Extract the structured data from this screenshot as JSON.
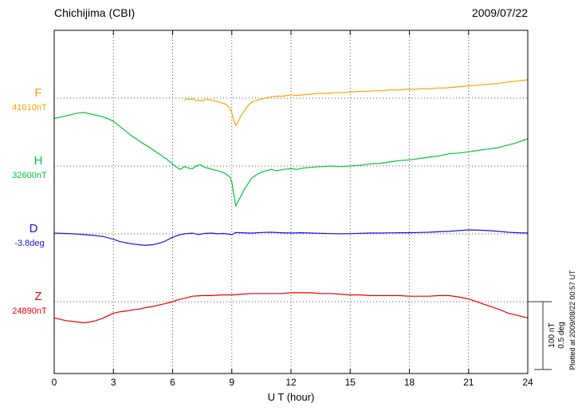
{
  "header": {
    "station": "Chichijima (CBI)",
    "date": "2009/07/22"
  },
  "footer": {
    "plotted_at": "Plotted at 2009/08/22 00:57 UT"
  },
  "scale_bar": {
    "line1": "100 nT",
    "line2": "0.5 deg"
  },
  "chart_data": {
    "type": "line",
    "title": "Chichijima (CBI) magnetogram 2009/07/22",
    "xlabel": "U T (hour)",
    "x_range": [
      0,
      24
    ],
    "x_ticks": [
      0,
      3,
      6,
      9,
      12,
      15,
      18,
      21,
      24
    ],
    "grid": "dotted vertical lines at each 3-hour tick; dotted horizontal line at each series baseline",
    "legend_position": "left of plot, one label per trace baseline",
    "scale": {
      "nT_per_division": 100,
      "deg_per_division": 0.5
    },
    "series": [
      {
        "name": "F",
        "unit": "nT",
        "baseline_label": "41010nT",
        "baseline_value": 41010,
        "color": "#ffa400",
        "points": [
          [
            6.6,
            -3
          ],
          [
            6.75,
            -1
          ],
          [
            6.9,
            -2
          ],
          [
            7.05,
            -1
          ],
          [
            7.2,
            -4
          ],
          [
            7.35,
            -3
          ],
          [
            7.5,
            -4
          ],
          [
            7.65,
            -2
          ],
          [
            7.8,
            -2
          ],
          [
            7.95,
            -3
          ],
          [
            8.1,
            -4
          ],
          [
            8.3,
            -5
          ],
          [
            8.5,
            -7
          ],
          [
            8.7,
            -9
          ],
          [
            8.9,
            -14
          ],
          [
            9.0,
            -22
          ],
          [
            9.1,
            -33
          ],
          [
            9.2,
            -40
          ],
          [
            9.3,
            -36
          ],
          [
            9.45,
            -27
          ],
          [
            9.6,
            -20
          ],
          [
            9.8,
            -12
          ],
          [
            10.0,
            -6
          ],
          [
            10.2,
            -4
          ],
          [
            10.4,
            -2
          ],
          [
            10.7,
            0
          ],
          [
            11.0,
            2
          ],
          [
            11.3,
            3
          ],
          [
            11.6,
            3
          ],
          [
            11.8,
            4
          ],
          [
            12.0,
            5
          ],
          [
            12.3,
            4
          ],
          [
            12.6,
            5
          ],
          [
            13.0,
            6
          ],
          [
            13.4,
            7
          ],
          [
            13.8,
            7
          ],
          [
            14.2,
            8
          ],
          [
            14.6,
            8
          ],
          [
            15.0,
            9
          ],
          [
            15.4,
            10
          ],
          [
            15.8,
            10
          ],
          [
            16.2,
            11
          ],
          [
            16.6,
            11
          ],
          [
            17.0,
            12
          ],
          [
            17.4,
            12
          ],
          [
            17.8,
            13
          ],
          [
            18.2,
            13
          ],
          [
            18.6,
            14
          ],
          [
            19.0,
            14
          ],
          [
            19.4,
            15
          ],
          [
            19.8,
            15
          ],
          [
            20.2,
            16
          ],
          [
            20.6,
            17
          ],
          [
            21.0,
            18
          ],
          [
            21.4,
            19
          ],
          [
            21.8,
            20
          ],
          [
            22.2,
            21
          ],
          [
            22.6,
            22
          ],
          [
            23.0,
            24
          ],
          [
            23.4,
            25
          ],
          [
            23.7,
            26
          ],
          [
            24.0,
            27
          ]
        ]
      },
      {
        "name": "H",
        "unit": "nT",
        "baseline_label": "32600nT",
        "baseline_value": 32600,
        "color": "#00c435",
        "points": [
          [
            0,
            70
          ],
          [
            0.3,
            72
          ],
          [
            0.6,
            74
          ],
          [
            0.9,
            76
          ],
          [
            1.2,
            78
          ],
          [
            1.5,
            79
          ],
          [
            1.8,
            77
          ],
          [
            2.1,
            75
          ],
          [
            2.4,
            73
          ],
          [
            2.7,
            70
          ],
          [
            3.0,
            66
          ],
          [
            3.3,
            59
          ],
          [
            3.6,
            52
          ],
          [
            3.9,
            45
          ],
          [
            4.2,
            39
          ],
          [
            4.5,
            33
          ],
          [
            4.8,
            28
          ],
          [
            5.1,
            22
          ],
          [
            5.4,
            16
          ],
          [
            5.7,
            10
          ],
          [
            6.0,
            3
          ],
          [
            6.2,
            -2
          ],
          [
            6.4,
            -5
          ],
          [
            6.6,
            -1
          ],
          [
            6.8,
            -3
          ],
          [
            7.0,
            -4
          ],
          [
            7.2,
            0
          ],
          [
            7.4,
            2
          ],
          [
            7.6,
            -2
          ],
          [
            7.8,
            -3
          ],
          [
            8.0,
            -5
          ],
          [
            8.3,
            -7
          ],
          [
            8.6,
            -10
          ],
          [
            8.9,
            -16
          ],
          [
            9.0,
            -24
          ],
          [
            9.1,
            -42
          ],
          [
            9.2,
            -59
          ],
          [
            9.3,
            -53
          ],
          [
            9.45,
            -45
          ],
          [
            9.6,
            -36
          ],
          [
            9.8,
            -27
          ],
          [
            10.0,
            -18
          ],
          [
            10.3,
            -12
          ],
          [
            10.6,
            -8
          ],
          [
            11.0,
            -5
          ],
          [
            11.3,
            -7
          ],
          [
            11.6,
            -5
          ],
          [
            12.0,
            -4
          ],
          [
            12.3,
            -5
          ],
          [
            12.6,
            -3
          ],
          [
            13.0,
            -2
          ],
          [
            13.5,
            -1
          ],
          [
            14.0,
            0
          ],
          [
            14.5,
            -1
          ],
          [
            15.0,
            0
          ],
          [
            15.5,
            1
          ],
          [
            16.0,
            3
          ],
          [
            16.5,
            4
          ],
          [
            17.0,
            6
          ],
          [
            17.5,
            8
          ],
          [
            18.0,
            9
          ],
          [
            18.5,
            11
          ],
          [
            19.0,
            13
          ],
          [
            19.5,
            15
          ],
          [
            20.0,
            18
          ],
          [
            20.5,
            19
          ],
          [
            21.0,
            21
          ],
          [
            21.5,
            23
          ],
          [
            22.0,
            25
          ],
          [
            22.5,
            27
          ],
          [
            23.0,
            31
          ],
          [
            23.3,
            33
          ],
          [
            23.6,
            36
          ],
          [
            24.0,
            40
          ]
        ]
      },
      {
        "name": "D",
        "unit": "deg",
        "baseline_label": "-3.8deg",
        "baseline_value": -3.8,
        "color": "#1414e6",
        "points": [
          [
            0,
            0.005
          ],
          [
            0.5,
            0.003
          ],
          [
            1.0,
            0
          ],
          [
            1.5,
            -0.005
          ],
          [
            2.0,
            -0.012
          ],
          [
            2.5,
            -0.02
          ],
          [
            3.0,
            -0.04
          ],
          [
            3.3,
            -0.055
          ],
          [
            3.6,
            -0.065
          ],
          [
            4.0,
            -0.075
          ],
          [
            4.3,
            -0.08
          ],
          [
            4.6,
            -0.085
          ],
          [
            5.0,
            -0.08
          ],
          [
            5.3,
            -0.07
          ],
          [
            5.6,
            -0.055
          ],
          [
            6.0,
            -0.025
          ],
          [
            6.3,
            -0.01
          ],
          [
            6.6,
            0
          ],
          [
            7.0,
            0.005
          ],
          [
            7.3,
            -0.005
          ],
          [
            7.6,
            0.003
          ],
          [
            8.0,
            0.005
          ],
          [
            8.3,
            0
          ],
          [
            8.6,
            0.003
          ],
          [
            9.0,
            -0.006
          ],
          [
            9.2,
            0.01
          ],
          [
            9.5,
            0.008
          ],
          [
            10.0,
            0.005
          ],
          [
            10.5,
            0.01
          ],
          [
            11.0,
            0.012
          ],
          [
            11.5,
            0.008
          ],
          [
            12.0,
            0.006
          ],
          [
            12.5,
            0.008
          ],
          [
            13.0,
            0.006
          ],
          [
            13.5,
            0.004
          ],
          [
            14.0,
            0.002
          ],
          [
            14.5,
            0
          ],
          [
            15.0,
            0.002
          ],
          [
            15.5,
            0.004
          ],
          [
            16.0,
            0.006
          ],
          [
            16.5,
            0.006
          ],
          [
            17.0,
            0.007
          ],
          [
            17.5,
            0.008
          ],
          [
            18.0,
            0.008
          ],
          [
            18.5,
            0.01
          ],
          [
            19.0,
            0.012
          ],
          [
            19.5,
            0.015
          ],
          [
            20.0,
            0.018
          ],
          [
            20.5,
            0.024
          ],
          [
            21.0,
            0.029
          ],
          [
            21.5,
            0.027
          ],
          [
            22.0,
            0.024
          ],
          [
            22.5,
            0.018
          ],
          [
            23.0,
            0.012
          ],
          [
            23.5,
            0.008
          ],
          [
            24.0,
            0.006
          ]
        ]
      },
      {
        "name": "Z",
        "unit": "nT",
        "baseline_label": "24890nT",
        "baseline_value": 24890,
        "color": "#e60000",
        "points": [
          [
            0,
            -24
          ],
          [
            0.3,
            -26
          ],
          [
            0.6,
            -28
          ],
          [
            0.9,
            -29
          ],
          [
            1.2,
            -30
          ],
          [
            1.5,
            -31
          ],
          [
            1.8,
            -30
          ],
          [
            2.1,
            -28
          ],
          [
            2.4,
            -25
          ],
          [
            2.7,
            -21
          ],
          [
            3.0,
            -17
          ],
          [
            3.3,
            -15
          ],
          [
            3.6,
            -14
          ],
          [
            4.0,
            -12
          ],
          [
            4.3,
            -11
          ],
          [
            4.6,
            -9
          ],
          [
            5.0,
            -7
          ],
          [
            5.3,
            -5
          ],
          [
            5.6,
            -3
          ],
          [
            6.0,
            0
          ],
          [
            6.3,
            3
          ],
          [
            6.6,
            5
          ],
          [
            7.0,
            8
          ],
          [
            7.5,
            9
          ],
          [
            8.0,
            9
          ],
          [
            8.5,
            10
          ],
          [
            9.0,
            10
          ],
          [
            9.5,
            11
          ],
          [
            10.0,
            12
          ],
          [
            10.5,
            12
          ],
          [
            11.0,
            12
          ],
          [
            11.5,
            12
          ],
          [
            12.0,
            13
          ],
          [
            12.5,
            13
          ],
          [
            13.0,
            13
          ],
          [
            13.5,
            12
          ],
          [
            14.0,
            12
          ],
          [
            14.5,
            11
          ],
          [
            15.0,
            10
          ],
          [
            15.5,
            10
          ],
          [
            16.0,
            9
          ],
          [
            16.5,
            9
          ],
          [
            17.0,
            9
          ],
          [
            17.5,
            9
          ],
          [
            18.0,
            8
          ],
          [
            18.5,
            8
          ],
          [
            19.0,
            8
          ],
          [
            19.5,
            9
          ],
          [
            20.0,
            9
          ],
          [
            20.5,
            7
          ],
          [
            21.0,
            4
          ],
          [
            21.3,
            1
          ],
          [
            21.6,
            -2
          ],
          [
            22.0,
            -6
          ],
          [
            22.3,
            -9
          ],
          [
            22.6,
            -12
          ],
          [
            23.0,
            -17
          ],
          [
            23.3,
            -19
          ],
          [
            23.6,
            -21
          ],
          [
            24.0,
            -24
          ]
        ]
      }
    ]
  }
}
